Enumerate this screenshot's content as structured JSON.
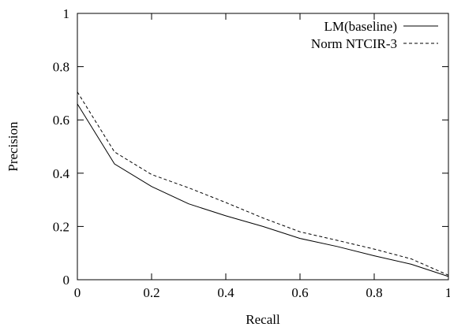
{
  "chart_data": {
    "type": "line",
    "title": "",
    "xlabel": "Recall",
    "ylabel": "Precision",
    "xlim": [
      0,
      1
    ],
    "ylim": [
      0,
      1
    ],
    "xticks": [
      "0",
      "0.2",
      "0.4",
      "0.6",
      "0.8",
      "1"
    ],
    "yticks": [
      "0",
      "0.2",
      "0.4",
      "0.6",
      "0.8",
      "1"
    ],
    "grid": false,
    "legend_position": "top-right",
    "series": [
      {
        "name": "LM(baseline)",
        "style": "solid",
        "color": "#000000",
        "x": [
          0,
          0.1,
          0.2,
          0.3,
          0.4,
          0.5,
          0.6,
          0.7,
          0.8,
          0.9,
          1.0
        ],
        "y": [
          0.66,
          0.435,
          0.35,
          0.285,
          0.24,
          0.2,
          0.155,
          0.125,
          0.09,
          0.058,
          0.012
        ]
      },
      {
        "name": "Norm NTCIR-3",
        "style": "dashed",
        "color": "#000000",
        "x": [
          0,
          0.1,
          0.2,
          0.3,
          0.4,
          0.5,
          0.6,
          0.7,
          0.8,
          0.9,
          1.0
        ],
        "y": [
          0.705,
          0.48,
          0.395,
          0.345,
          0.29,
          0.232,
          0.18,
          0.148,
          0.115,
          0.078,
          0.017
        ]
      }
    ]
  }
}
